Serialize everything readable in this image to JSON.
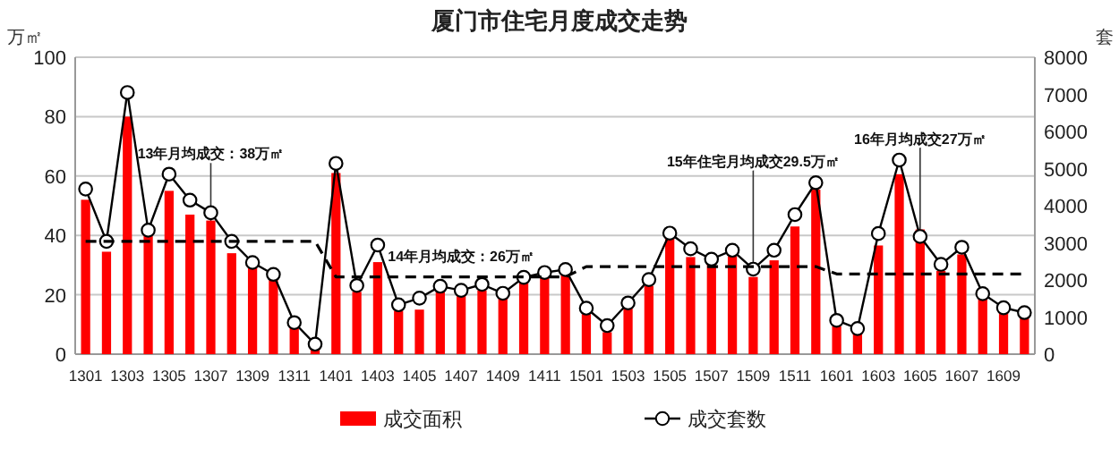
{
  "chart_data": {
    "type": "bar",
    "title": "厦门市住宅月度成交走势",
    "ylabel": "万㎡",
    "y2label": "套",
    "categories": [
      "1301",
      null,
      "1303",
      null,
      "1305",
      null,
      "1307",
      null,
      "1309",
      null,
      "1311",
      null,
      "1401",
      null,
      "1403",
      null,
      "1405",
      null,
      "1407",
      null,
      "1409",
      null,
      "1411",
      null,
      "1501",
      null,
      "1503",
      null,
      "1505",
      null,
      "1507",
      null,
      "1509",
      null,
      "1511",
      null,
      "1601",
      null,
      "1603",
      null,
      "1605",
      null,
      "1607",
      null,
      "1609",
      null
    ],
    "series": [
      {
        "name": "成交面积",
        "color": "#ff0000",
        "values": [
          52,
          34.5,
          80,
          40,
          55,
          47,
          45,
          34,
          29,
          25,
          9,
          2,
          61,
          21,
          31,
          14.6,
          15,
          21,
          20,
          21.5,
          19,
          24,
          26,
          26.7,
          13.5,
          7.4,
          15.5,
          23,
          39,
          32.7,
          30.7,
          33,
          26,
          31.6,
          43,
          55.4,
          9.4,
          7,
          36.6,
          60.6,
          42,
          28,
          33.6,
          19,
          14.6,
          12
        ]
      },
      {
        "type": "line",
        "name": "成交套数",
        "color": "#000000",
        "axis": "y2",
        "marker": "circle",
        "line_style": "solid",
        "values": [
          4450,
          3040,
          7050,
          3340,
          4850,
          4150,
          3810,
          3040,
          2470,
          2150,
          850,
          270,
          5140,
          1850,
          2940,
          1330,
          1510,
          1830,
          1720,
          1880,
          1640,
          2070,
          2200,
          2280,
          1240,
          770,
          1380,
          2010,
          3260,
          2840,
          2560,
          2800,
          2290,
          2800,
          3760,
          4620,
          910,
          690,
          3250,
          5230,
          3170,
          2420,
          2880,
          1630,
          1250,
          1120
        ]
      },
      {
        "type": "line",
        "color": "#000000",
        "marker": "none",
        "line_style": "dashed",
        "values": [
          38,
          38,
          38,
          38,
          38,
          38,
          38,
          38,
          38,
          38,
          38,
          38,
          26,
          26,
          26,
          26,
          26,
          26,
          26,
          26,
          26,
          26,
          26,
          26,
          29.5,
          29.5,
          29.5,
          29.5,
          29.5,
          29.5,
          29.5,
          29.5,
          29.5,
          29.5,
          29.5,
          29.5,
          27,
          27,
          27,
          27,
          27,
          27,
          27,
          27,
          27,
          27
        ]
      }
    ],
    "ylim": [
      0,
      100
    ],
    "yticks": [
      0,
      20,
      40,
      60,
      80,
      100
    ],
    "y2lim": [
      0,
      8000
    ],
    "y2ticks": [
      0,
      1000,
      2000,
      3000,
      4000,
      5000,
      6000,
      7000,
      8000
    ],
    "grid": "y",
    "legend": "bottom",
    "annotations": [
      {
        "text": "13年月均成交：38万㎡",
        "x": "1307",
        "y": 38
      },
      {
        "text": "14年月均成交：26万㎡",
        "x": "1407",
        "y": 26
      },
      {
        "text": "15年住宅月均成交29.5万㎡",
        "x": "1509",
        "y": 29.5
      },
      {
        "text": "16年月均成交27万㎡",
        "x": "1605",
        "y": 27
      }
    ]
  }
}
